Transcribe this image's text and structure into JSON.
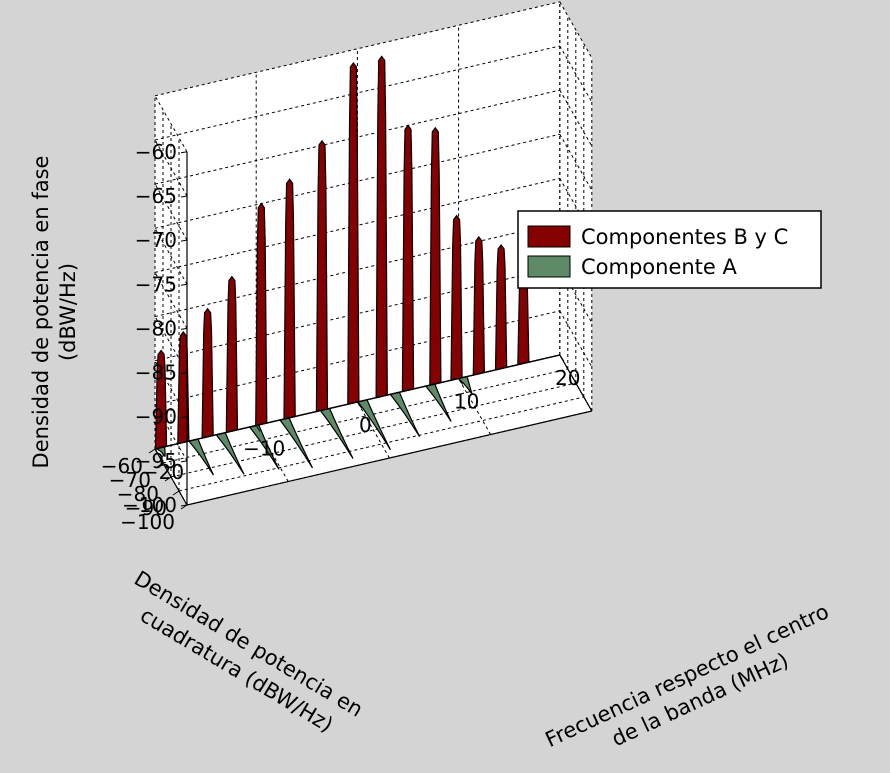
{
  "chart_data": {
    "type": "area",
    "subtype": "3d-waterfall",
    "x_axis": {
      "label_lines": [
        "Frecuencia respecto el centro",
        "de la banda (MHz)"
      ],
      "range": [
        -20,
        20
      ],
      "ticks": [
        "−20",
        "−10",
        "0",
        "10",
        "20"
      ]
    },
    "y_axis": {
      "label_lines": [
        "Densidad de potencia en",
        "cuadratura (dBW/Hz)"
      ],
      "range": [
        -100,
        -60
      ],
      "ticks": [
        "−100",
        "−90",
        "−80",
        "−70",
        "−60"
      ]
    },
    "z_axis": {
      "label_lines": [
        "Densidad de potencia en fase",
        "(dBW/Hz)"
      ],
      "range": [
        -100,
        -60
      ],
      "ticks": [
        "−60",
        "−65",
        "−70",
        "−75",
        "−80",
        "−85",
        "−90",
        "−95",
        "−100"
      ]
    },
    "grid": true,
    "legend_position": "right",
    "colors": {
      "bc": "#850000",
      "a": "#5e8a68",
      "background": "#d4d4d4",
      "plot_bg": "#ffffff"
    },
    "series": [
      {
        "name": "Componentes B y C",
        "type": "in-phase peaks",
        "peaks": [
          {
            "f": -19.4,
            "level": -89
          },
          {
            "f": -17.2,
            "level": -87.5
          },
          {
            "f": -14.8,
            "level": -85.5
          },
          {
            "f": -12.4,
            "level": -82.5
          },
          {
            "f": -9.5,
            "level": -75
          },
          {
            "f": -6.7,
            "level": -73
          },
          {
            "f": -3.5,
            "level": -69.5
          },
          {
            "f": -0.4,
            "level": -61.5
          },
          {
            "f": 2.4,
            "level": -61.5
          },
          {
            "f": 5.0,
            "level": -70
          },
          {
            "f": 7.7,
            "level": -71
          },
          {
            "f": 9.8,
            "level": -81.5
          },
          {
            "f": 12.0,
            "level": -84.5
          },
          {
            "f": 14.2,
            "level": -86
          },
          {
            "f": 16.4,
            "level": -89
          }
        ]
      },
      {
        "name": "Componente A",
        "type": "quadrature peaks",
        "peaks": [
          {
            "f": -19.5,
            "level": -66
          },
          {
            "f": -16.2,
            "level": -85
          },
          {
            "f": -13.5,
            "level": -89
          },
          {
            "f": -10.2,
            "level": -91
          },
          {
            "f": -7.2,
            "level": -95
          },
          {
            "f": -3.2,
            "level": -95
          },
          {
            "f": 0.5,
            "level": -95
          },
          {
            "f": 3.7,
            "level": -91
          },
          {
            "f": 7.2,
            "level": -86
          },
          {
            "f": 10.4,
            "level": -72
          }
        ]
      }
    ]
  }
}
